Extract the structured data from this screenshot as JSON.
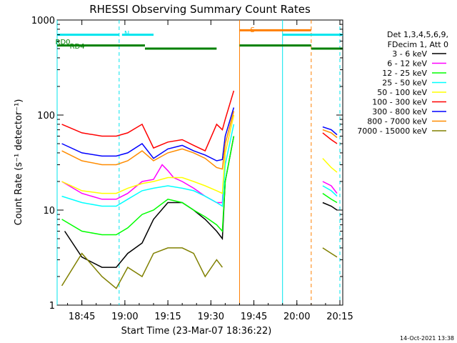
{
  "chart_data": {
    "type": "line",
    "title": "RHESSI Observing Summary Count Rates",
    "xlabel": "Start Time (23-Mar-07 18:36:22)",
    "ylabel": "Count Rate (s⁻¹ detector⁻¹)",
    "yscale": "log",
    "ylim": [
      1,
      1000
    ],
    "xlim": [
      "18:36:22",
      "20:16:00"
    ],
    "x_ticks": [
      "18:45",
      "19:00",
      "19:15",
      "19:30",
      "19:45",
      "20:00",
      "20:15"
    ],
    "y_ticks": [
      "1",
      "10",
      "100",
      "1000"
    ],
    "legend_header": [
      "Det 1,3,4,5,6,9,",
      "FDecim 1, Att 0"
    ],
    "legend_position": "right",
    "timestamp": "14-Oct-2021 13:38",
    "series": [
      {
        "name": "3 - 6 keV",
        "color": "#000000",
        "x": [
          "18:39",
          "18:45",
          "18:52",
          "18:57",
          "19:01",
          "19:06",
          "19:10",
          "19:15",
          "19:20",
          "19:24",
          "19:28",
          "19:32",
          "19:34",
          "19:35",
          "19:38"
        ],
        "values": [
          6,
          3.2,
          2.5,
          2.5,
          3.5,
          4.5,
          8,
          12,
          12,
          10,
          8,
          6,
          5,
          20,
          60
        ],
        "x2": [
          "20:09",
          "20:12",
          "20:14"
        ],
        "values2": [
          12,
          11,
          10
        ]
      },
      {
        "name": "6 - 12 keV",
        "color": "#ff00ff",
        "x": [
          "18:38",
          "18:45",
          "18:52",
          "18:57",
          "19:01",
          "19:06",
          "19:10",
          "19:13",
          "19:15",
          "19:17",
          "19:20",
          "19:24",
          "19:28",
          "19:32",
          "19:34",
          "19:35",
          "19:38"
        ],
        "values": [
          20,
          15,
          13,
          13,
          15,
          20,
          21,
          30,
          26,
          22,
          20,
          17,
          14,
          12,
          12,
          40,
          100
        ],
        "x2": [
          "20:09",
          "20:12",
          "20:14"
        ],
        "values2": [
          20,
          18,
          15
        ]
      },
      {
        "name": "12 - 25 keV",
        "color": "#00ff00",
        "x": [
          "18:38",
          "18:45",
          "18:52",
          "18:57",
          "19:01",
          "19:06",
          "19:10",
          "19:15",
          "19:20",
          "19:24",
          "19:28",
          "19:32",
          "19:34",
          "19:35",
          "19:38"
        ],
        "values": [
          8,
          6,
          5.5,
          5.5,
          6.5,
          9,
          10,
          13,
          12,
          10,
          8.5,
          7,
          6,
          20,
          60
        ],
        "x2": [
          "20:09",
          "20:12",
          "20:14"
        ],
        "values2": [
          15,
          13,
          12
        ]
      },
      {
        "name": "25 - 50 keV",
        "color": "#00ffff",
        "x": [
          "18:38",
          "18:45",
          "18:52",
          "18:57",
          "19:01",
          "19:06",
          "19:10",
          "19:15",
          "19:20",
          "19:24",
          "19:28",
          "19:32",
          "19:34",
          "19:35",
          "19:38"
        ],
        "values": [
          14,
          12,
          11,
          11,
          13,
          16,
          17,
          18,
          17,
          16,
          14,
          12,
          11,
          30,
          80
        ],
        "x2": [
          "20:09",
          "20:12",
          "20:14"
        ],
        "values2": [
          18,
          16,
          14
        ]
      },
      {
        "name": "50 - 100 keV",
        "color": "#ffff00",
        "x": [
          "18:38",
          "18:45",
          "18:52",
          "18:57",
          "19:01",
          "19:06",
          "19:10",
          "19:15",
          "19:20",
          "19:24",
          "19:28",
          "19:32",
          "19:34",
          "19:35",
          "19:38"
        ],
        "values": [
          20,
          16,
          15,
          15,
          17,
          19,
          20,
          22,
          22,
          20,
          18,
          16,
          15,
          40,
          100
        ],
        "x2": [
          "20:09",
          "20:12",
          "20:14"
        ],
        "values2": [
          35,
          28,
          25
        ]
      },
      {
        "name": "100 - 300 keV",
        "color": "#ff0000",
        "x": [
          "18:38",
          "18:45",
          "18:52",
          "18:57",
          "19:01",
          "19:06",
          "19:10",
          "19:15",
          "19:20",
          "19:24",
          "19:28",
          "19:32",
          "19:34",
          "19:35",
          "19:38"
        ],
        "values": [
          80,
          65,
          60,
          60,
          65,
          80,
          45,
          52,
          55,
          48,
          42,
          80,
          70,
          90,
          180
        ],
        "x2": [
          "20:09",
          "20:12",
          "20:14"
        ],
        "values2": [
          65,
          55,
          50
        ]
      },
      {
        "name": "300 - 800 keV",
        "color": "#0000ff",
        "x": [
          "18:38",
          "18:45",
          "18:52",
          "18:57",
          "19:01",
          "19:06",
          "19:10",
          "19:15",
          "19:20",
          "19:24",
          "19:28",
          "19:32",
          "19:34",
          "19:35",
          "19:38"
        ],
        "values": [
          50,
          40,
          37,
          37,
          40,
          50,
          35,
          44,
          48,
          42,
          38,
          33,
          34,
          60,
          120
        ],
        "x2": [
          "20:09",
          "20:12",
          "20:14"
        ],
        "values2": [
          75,
          70,
          62
        ]
      },
      {
        "name": "800 - 7000 keV",
        "color": "#ff8c00",
        "x": [
          "18:38",
          "18:45",
          "18:52",
          "18:57",
          "19:01",
          "19:06",
          "19:10",
          "19:15",
          "19:20",
          "19:24",
          "19:28",
          "19:32",
          "19:34",
          "19:35",
          "19:38"
        ],
        "values": [
          42,
          33,
          30,
          30,
          33,
          42,
          33,
          40,
          44,
          40,
          35,
          28,
          27,
          50,
          110
        ],
        "x2": [
          "20:09",
          "20:12",
          "20:14"
        ],
        "values2": [
          70,
          65,
          58
        ]
      },
      {
        "name": "7000 - 15000 keV",
        "color": "#808000",
        "x": [
          "18:38",
          "18:45",
          "18:52",
          "18:57",
          "19:01",
          "19:06",
          "19:10",
          "19:15",
          "19:20",
          "19:24",
          "19:28",
          "19:32",
          "19:34"
        ],
        "values": [
          1.6,
          3.5,
          2,
          1.5,
          2.5,
          2,
          3.5,
          4,
          4,
          3.5,
          2,
          3,
          2.5
        ],
        "x2": [
          "20:09",
          "20:12",
          "20:14"
        ],
        "values2": [
          4,
          3.5,
          3.2
        ]
      }
    ],
    "annotations": [
      {
        "text": "N",
        "color": "#00e5ee",
        "x": "18:59"
      },
      {
        "text": "S",
        "color": "#ff7f00",
        "x": "19:43"
      },
      {
        "text": "RD0",
        "color": "#008000",
        "x": "18:35"
      },
      {
        "text": "RD4",
        "color": "#008000",
        "x": "18:40"
      }
    ],
    "state_bars": [
      {
        "name": "N",
        "color": "#00e5ee",
        "value": 700,
        "segments": [
          [
            "18:36:22",
            "18:58"
          ],
          [
            "18:59",
            "19:10"
          ],
          [
            "19:55",
            "20:16"
          ]
        ]
      },
      {
        "name": "S",
        "color": "#ff7f00",
        "value": 780,
        "segments": [
          [
            "19:40",
            "20:05"
          ]
        ]
      },
      {
        "name": "RD",
        "color": "#008000",
        "value": 540,
        "segments": [
          [
            "18:36:22",
            "19:07"
          ],
          [
            "19:40",
            "20:05"
          ]
        ]
      },
      {
        "name": "RD",
        "color": "#008000",
        "value": 500,
        "segments": [
          [
            "19:07",
            "19:32"
          ],
          [
            "20:05",
            "20:16"
          ]
        ]
      }
    ],
    "vlines": [
      {
        "x": "18:36:22",
        "color": "#00e5ee",
        "style": "solid"
      },
      {
        "x": "18:58",
        "color": "#00e5ee",
        "style": "dashed"
      },
      {
        "x": "19:40",
        "color": "#ff7f00",
        "style": "solid"
      },
      {
        "x": "19:55",
        "color": "#00e5ee",
        "style": "solid"
      },
      {
        "x": "20:05",
        "color": "#ff7f00",
        "style": "dashed"
      },
      {
        "x": "20:15",
        "color": "#00e5ee",
        "style": "dashed"
      }
    ]
  }
}
